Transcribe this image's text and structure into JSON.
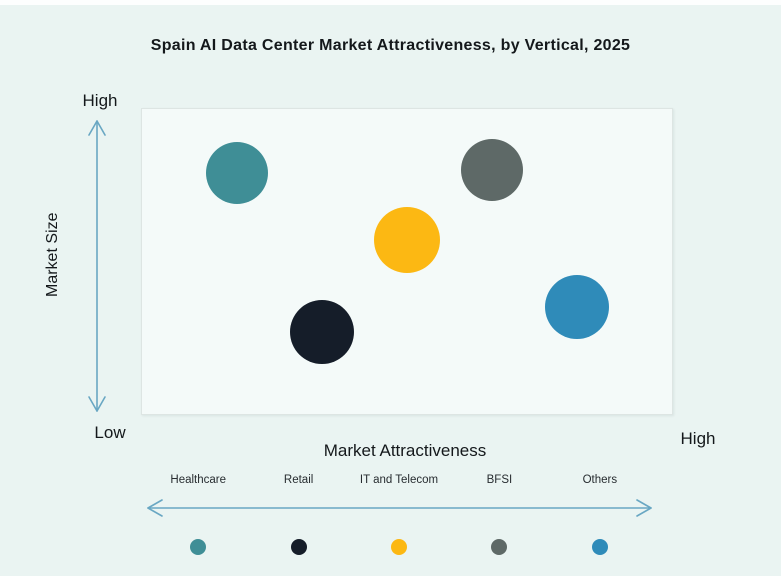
{
  "title": "Spain AI Data Center Market Attractiveness,  by Vertical, 2025",
  "axes": {
    "y_label": "Market Size",
    "y_high_label": "High",
    "y_low_label": "Low",
    "x_label": "Market Attractiveness",
    "x_high_label": "High"
  },
  "colors": {
    "background": "#eaf4f2",
    "plot_background": "#f4faf9",
    "plot_border": "#dde5e3",
    "title_text": "#14181b",
    "axis_text": "#14181b",
    "arrow": "#69a7c3"
  },
  "chart_data": {
    "type": "scatter",
    "title": "Spain AI Data Center Market Attractiveness,  by Vertical, 2025",
    "xlabel": "Market Attractiveness",
    "ylabel": "Market Size",
    "x_axis_range_labels": [
      "Low",
      "High"
    ],
    "y_axis_range_labels": [
      "Low",
      "High"
    ],
    "grid": false,
    "legend_position": "bottom",
    "points": [
      {
        "label": "Healthcare",
        "color": "#3f8e96",
        "x": 0.18,
        "y": 0.79,
        "r": 31
      },
      {
        "label": "Retail",
        "color": "#151d29",
        "x": 0.34,
        "y": 0.27,
        "r": 32
      },
      {
        "label": "IT and Telecom",
        "color": "#fcb813",
        "x": 0.5,
        "y": 0.57,
        "r": 33
      },
      {
        "label": "BFSI",
        "color": "#5e6967",
        "x": 0.66,
        "y": 0.8,
        "r": 31
      },
      {
        "label": "Others",
        "color": "#2f8bb9",
        "x": 0.82,
        "y": 0.35,
        "r": 32
      }
    ],
    "legend": [
      "Healthcare",
      "Retail",
      "IT and Telecom",
      "BFSI",
      "Others"
    ]
  }
}
